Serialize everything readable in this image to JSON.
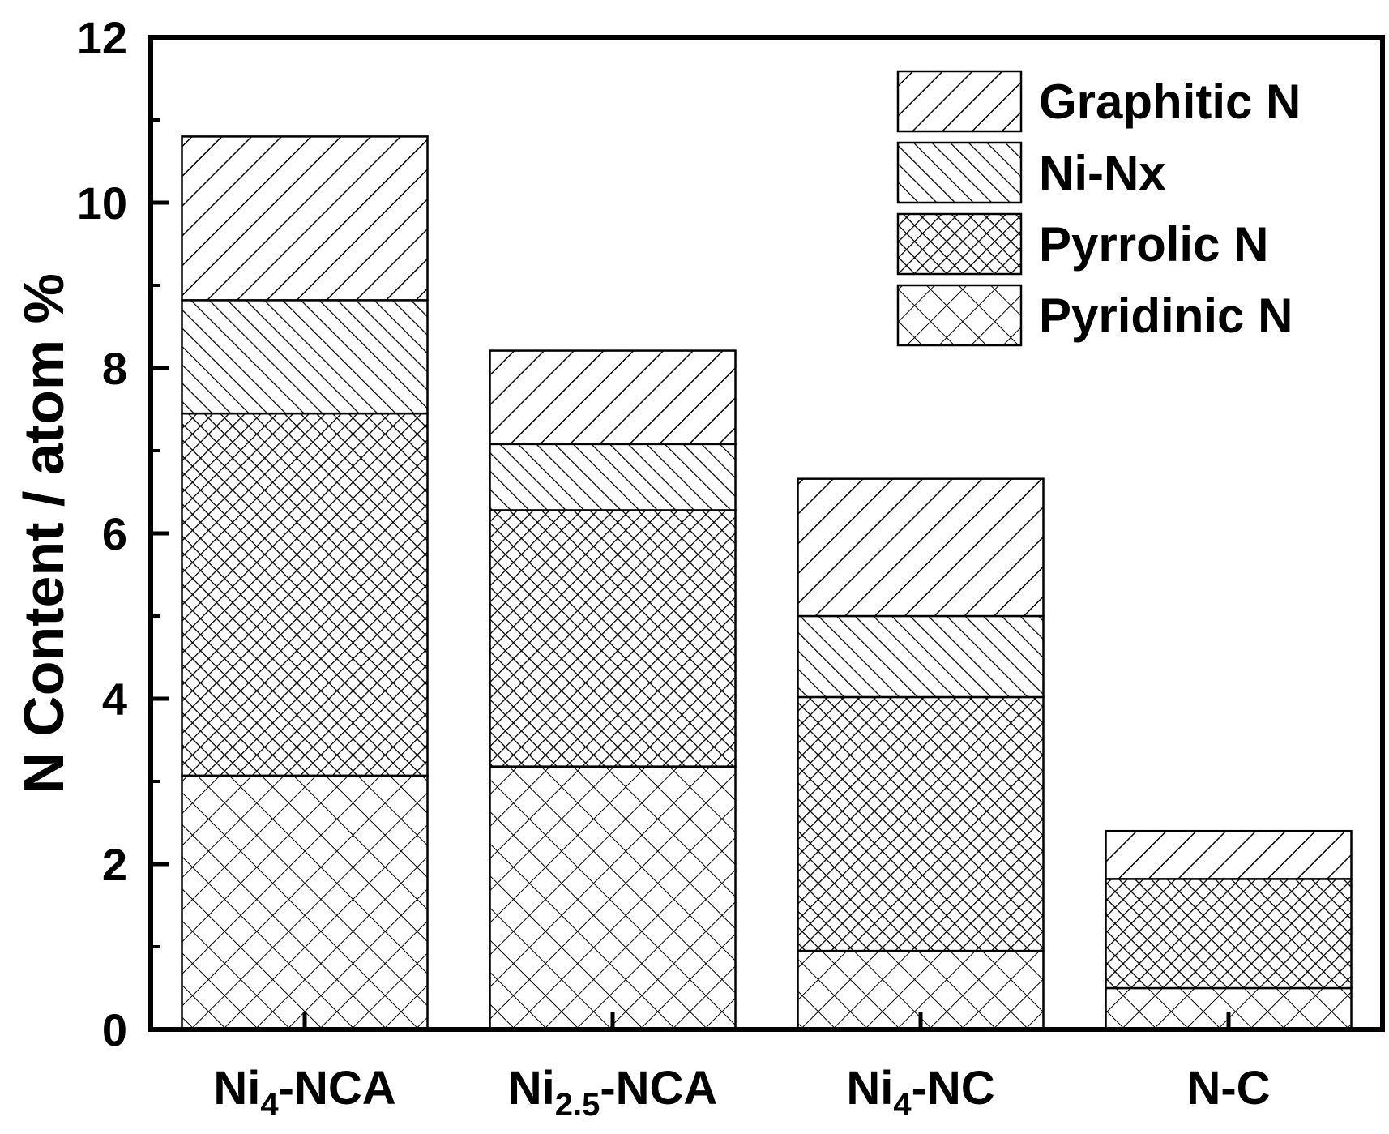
{
  "chart_data": {
    "type": "bar",
    "stacked": true,
    "title": "",
    "xlabel": "",
    "ylabel": "N Content / atom %",
    "ylim": [
      0,
      12
    ],
    "yticks": [
      "0",
      "2",
      "4",
      "6",
      "8",
      "10",
      "12"
    ],
    "categories": [
      {
        "base": "Ni",
        "sub": "4",
        "rest": "-NCA"
      },
      {
        "base": "Ni",
        "sub": "2.5",
        "rest": "-NCA"
      },
      {
        "base": "Ni",
        "sub": "4",
        "rest": "-NC"
      },
      {
        "base": "N-C",
        "sub": "",
        "rest": ""
      }
    ],
    "series": [
      {
        "name": "Pyridinic N",
        "pattern": "crosshatch-wide",
        "values": [
          3.07,
          3.18,
          0.95,
          0.5
        ]
      },
      {
        "name": "Pyrrolic N",
        "pattern": "crosshatch-dense",
        "values": [
          4.38,
          3.1,
          3.07,
          1.32
        ]
      },
      {
        "name": "Ni-Nx",
        "pattern": "diagonal-forward",
        "values": [
          1.37,
          0.8,
          0.98,
          0
        ]
      },
      {
        "name": "Graphitic N",
        "pattern": "diagonal-backward",
        "values": [
          1.98,
          1.13,
          1.66,
          0.58
        ]
      }
    ],
    "legend": {
      "position": "top-right",
      "order": [
        "Graphitic N",
        "Ni-Nx",
        "Pyrrolic N",
        "Pyridinic N"
      ]
    },
    "grid": false,
    "colors": {
      "line": "#000000",
      "background": "#ffffff"
    }
  }
}
